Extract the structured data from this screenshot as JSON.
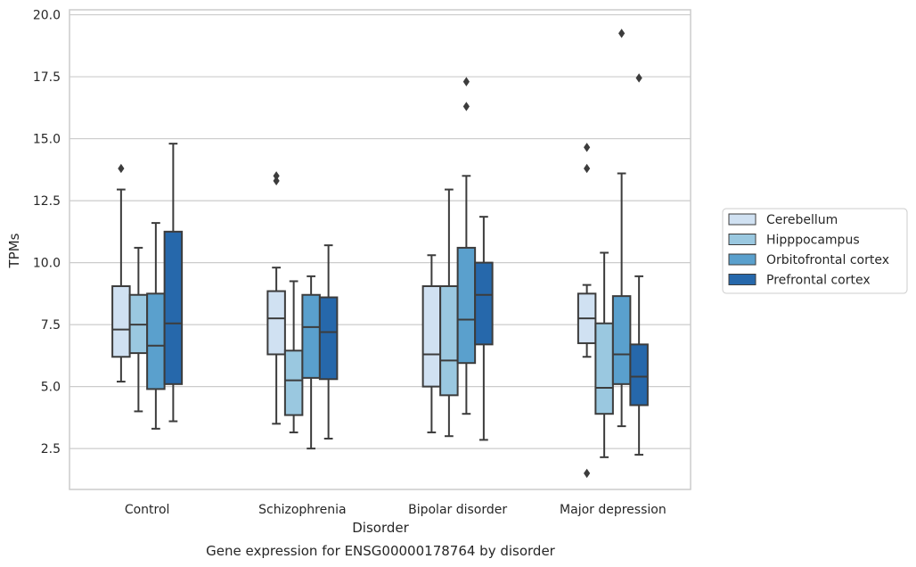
{
  "chart_data": {
    "type": "box",
    "title": "Gene expression for ENSG00000178764 by disorder",
    "xlabel": "Disorder",
    "ylabel": "TPMs",
    "ylim": [
      0.85,
      20.2
    ],
    "yticks": [
      "2.5",
      "5.0",
      "7.5",
      "10.0",
      "12.5",
      "15.0",
      "17.5",
      "20.0"
    ],
    "categories": [
      "Control",
      "Schizophrenia",
      "Bipolar disorder",
      "Major depression"
    ],
    "grid": "horizontal",
    "legend_position": "right",
    "series": [
      {
        "name": "Cerebellum",
        "color": "#d0e1f2",
        "boxes": [
          {
            "whislo": 5.2,
            "q1": 6.2,
            "med": 7.3,
            "q3": 9.05,
            "whishi": 12.95,
            "fliers": [
              13.8
            ]
          },
          {
            "whislo": 3.5,
            "q1": 6.3,
            "med": 7.75,
            "q3": 8.85,
            "whishi": 9.8,
            "fliers": [
              13.3,
              13.5
            ]
          },
          {
            "whislo": 3.15,
            "q1": 5.0,
            "med": 6.3,
            "q3": 9.05,
            "whishi": 10.3,
            "fliers": []
          },
          {
            "whislo": 6.2,
            "q1": 6.75,
            "med": 7.75,
            "q3": 8.75,
            "whishi": 9.1,
            "fliers": [
              1.5,
              13.8,
              14.65
            ]
          }
        ]
      },
      {
        "name": "Hipppocampus",
        "color": "#9ac8e0",
        "boxes": [
          {
            "whislo": 4.0,
            "q1": 6.35,
            "med": 7.5,
            "q3": 8.7,
            "whishi": 10.6,
            "fliers": []
          },
          {
            "whislo": 3.15,
            "q1": 3.85,
            "med": 5.25,
            "q3": 6.45,
            "whishi": 9.25,
            "fliers": []
          },
          {
            "whislo": 3.0,
            "q1": 4.65,
            "med": 6.05,
            "q3": 9.05,
            "whishi": 12.95,
            "fliers": []
          },
          {
            "whislo": 2.15,
            "q1": 3.9,
            "med": 4.95,
            "q3": 7.55,
            "whishi": 10.4,
            "fliers": []
          }
        ]
      },
      {
        "name": "Orbitofrontal cortex",
        "color": "#5aa0cd",
        "boxes": [
          {
            "whislo": 3.3,
            "q1": 4.9,
            "med": 6.65,
            "q3": 8.75,
            "whishi": 11.6,
            "fliers": []
          },
          {
            "whislo": 2.5,
            "q1": 5.35,
            "med": 7.4,
            "q3": 8.7,
            "whishi": 9.45,
            "fliers": []
          },
          {
            "whislo": 3.9,
            "q1": 5.95,
            "med": 7.7,
            "q3": 10.6,
            "whishi": 13.5,
            "fliers": [
              16.3,
              17.3
            ]
          },
          {
            "whislo": 3.4,
            "q1": 5.1,
            "med": 6.3,
            "q3": 8.65,
            "whishi": 13.6,
            "fliers": [
              19.25
            ]
          }
        ]
      },
      {
        "name": "Prefrontal cortex",
        "color": "#2668ab",
        "boxes": [
          {
            "whislo": 3.6,
            "q1": 5.1,
            "med": 7.55,
            "q3": 11.25,
            "whishi": 14.8,
            "fliers": []
          },
          {
            "whislo": 2.9,
            "q1": 5.3,
            "med": 7.2,
            "q3": 8.6,
            "whishi": 10.7,
            "fliers": []
          },
          {
            "whislo": 2.85,
            "q1": 6.7,
            "med": 8.7,
            "q3": 10.0,
            "whishi": 11.85,
            "fliers": []
          },
          {
            "whislo": 2.25,
            "q1": 4.25,
            "med": 5.4,
            "q3": 6.7,
            "whishi": 9.45,
            "fliers": [
              17.45
            ]
          }
        ]
      }
    ]
  }
}
